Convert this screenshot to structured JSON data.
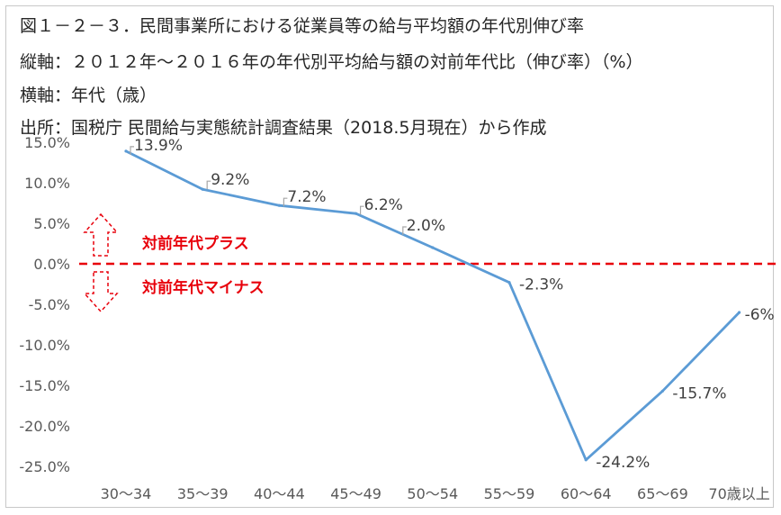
{
  "header": {
    "title": "図１－２－３．民間事業所における従業員等の給与平均額の年代別伸び率",
    "y_axis_note": "縦軸：２０１２年～２０１６年の年代別平均給与額の対前年代比（伸び率）（%）",
    "x_axis_note": "横軸：年代（歳）",
    "source_note": "出所：国税庁 民間給与実態統計調査結果（2018.5月現在）から作成"
  },
  "colors": {
    "line": "#5b9bd5",
    "zero_line": "#e8000b",
    "annotation": "#e8000b"
  },
  "annotations": {
    "plus": "対前年代プラス",
    "minus": "対前年代マイナス"
  },
  "chart_data": {
    "type": "line",
    "categories": [
      "30～34",
      "35～39",
      "40～44",
      "45～49",
      "50～54",
      "55～59",
      "60～64",
      "65～69",
      "70歳以上"
    ],
    "values": [
      13.9,
      9.2,
      7.2,
      6.2,
      2.0,
      -2.3,
      -24.2,
      -15.7,
      -6
    ],
    "data_labels": [
      "13.9%",
      "9.2%",
      "7.2%",
      "6.2%",
      "2.0%",
      "-2.3%",
      "-24.2%",
      "-15.7%",
      "-6%"
    ],
    "y_ticks": [
      15,
      10,
      5,
      0,
      -5,
      -10,
      -15,
      -20,
      -25
    ],
    "y_tick_labels": [
      "15.0%",
      "10.0%",
      "5.0%",
      "0.0%",
      "-5.0%",
      "-10.0%",
      "-15.0%",
      "-20.0%",
      "-25.0%"
    ],
    "ylim": [
      -25,
      15
    ],
    "grid": false,
    "reference_line": 0
  }
}
